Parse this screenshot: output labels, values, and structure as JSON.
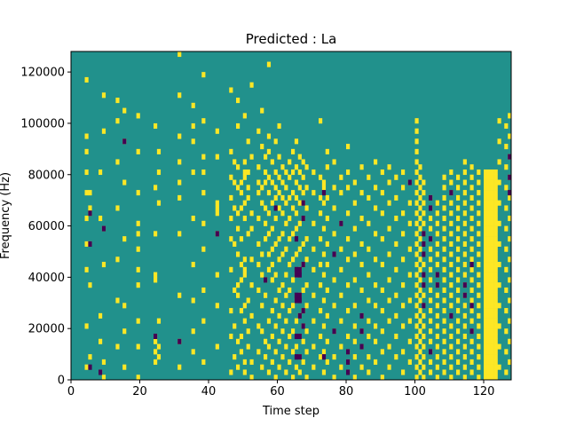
{
  "chart_data": {
    "type": "heatmap",
    "title": "Predicted : La",
    "xlabel": "Time step",
    "ylabel": "Frequency (Hz)",
    "xlim": [
      0,
      128
    ],
    "ylim": [
      0,
      128000
    ],
    "x_ticks": [
      0,
      20,
      40,
      60,
      80,
      100,
      120
    ],
    "y_ticks": [
      0,
      20000,
      40000,
      60000,
      80000,
      100000,
      120000
    ],
    "y_tick_labels": [
      "0",
      "20000",
      "40000",
      "60000",
      "80000",
      "100000",
      "120000"
    ],
    "n_time_steps": 128,
    "n_freq_bins": 64,
    "values_encoding": "value level per cell: 0 = low (dark purple), 1 = mid (teal background), 2 = high (yellow)",
    "colors": {
      "low": "#440154",
      "mid": "#21918c",
      "high": "#fde725",
      "axes": "#000000"
    },
    "cells": [
      {
        "t": 4,
        "f": [
          2,
          10,
          21,
          26,
          31,
          36,
          40,
          44,
          47,
          58
        ]
      },
      {
        "t": 5,
        "f": [
          4,
          18,
          26,
          32,
          33,
          36
        ]
      },
      {
        "t": 8,
        "f": [
          1,
          7,
          12,
          31,
          40
        ]
      },
      {
        "t": 9,
        "f": [
          0,
          3,
          22,
          29,
          48,
          55
        ]
      },
      {
        "t": 13,
        "f": [
          6,
          15,
          23,
          33,
          42,
          50,
          54
        ]
      },
      {
        "t": 15,
        "f": [
          2,
          9,
          14,
          27,
          38,
          46,
          52
        ]
      },
      {
        "t": 19,
        "f": [
          0,
          6,
          11,
          18,
          21,
          25,
          28,
          30,
          36,
          44,
          51
        ]
      },
      {
        "t": 24,
        "f": [
          3,
          5,
          7,
          8,
          19,
          20,
          28,
          37,
          49
        ]
      },
      {
        "t": 25,
        "f": [
          4,
          6,
          11,
          34,
          40,
          44
        ]
      },
      {
        "t": 31,
        "f": [
          2,
          7,
          16,
          28,
          35,
          38,
          42,
          47,
          55,
          63
        ]
      },
      {
        "t": 35,
        "f": [
          5,
          9,
          15,
          22,
          31,
          40,
          46,
          49,
          53
        ]
      },
      {
        "t": 38,
        "f": [
          3,
          11,
          17,
          25,
          30,
          36,
          40,
          43,
          50,
          59
        ]
      },
      {
        "t": 42,
        "f": [
          6,
          14,
          20,
          28,
          32,
          33,
          34,
          43,
          48
        ]
      },
      {
        "t": 46,
        "f": [
          1,
          8,
          13,
          21,
          27,
          31,
          35,
          39,
          44,
          56
        ]
      },
      {
        "t": 47,
        "f": [
          4,
          10,
          17,
          26,
          33,
          38,
          42
        ]
      },
      {
        "t": 48,
        "f": [
          2,
          7,
          16,
          18,
          24,
          29,
          32,
          37,
          41,
          49,
          54
        ]
      },
      {
        "t": 49,
        "f": [
          5,
          8,
          13,
          19,
          22,
          27,
          33,
          36,
          38
        ]
      },
      {
        "t": 50,
        "f": [
          1,
          3,
          11,
          14,
          20,
          21,
          23,
          31,
          34,
          39,
          40,
          42,
          51
        ]
      },
      {
        "t": 51,
        "f": [
          6,
          9,
          15,
          28,
          35,
          37,
          40,
          46
        ]
      },
      {
        "t": 52,
        "f": [
          0,
          3,
          12,
          18,
          23,
          29,
          32,
          43,
          57
        ]
      },
      {
        "t": 54,
        "f": [
          5,
          10,
          17,
          22,
          26,
          31,
          36,
          38,
          41,
          48
        ]
      },
      {
        "t": 55,
        "f": [
          2,
          9,
          14,
          20,
          24,
          34,
          37,
          45,
          52
        ]
      },
      {
        "t": 56,
        "f": [
          4,
          7,
          16,
          19,
          27,
          30,
          33,
          38,
          40,
          43
        ]
      },
      {
        "t": 57,
        "f": [
          1,
          6,
          11,
          21,
          24,
          28,
          32,
          36,
          39,
          44,
          47,
          61
        ]
      },
      {
        "t": 58,
        "f": [
          3,
          8,
          13,
          19,
          22,
          25,
          29,
          34,
          38,
          42
        ]
      },
      {
        "t": 59,
        "f": [
          0,
          5,
          10,
          15,
          20,
          26,
          31,
          35,
          37,
          40,
          46
        ]
      },
      {
        "t": 60,
        "f": [
          2,
          7,
          12,
          17,
          23,
          27,
          33,
          36,
          39,
          43,
          49
        ]
      },
      {
        "t": 61,
        "f": [
          4,
          9,
          14,
          18,
          24,
          28,
          32,
          35,
          38,
          41
        ]
      },
      {
        "t": 62,
        "f": [
          1,
          6,
          11,
          16,
          20,
          25,
          30,
          34,
          37,
          40
        ]
      },
      {
        "t": 63,
        "f": [
          3,
          8,
          13,
          17,
          22,
          27,
          31,
          35,
          39,
          42
        ]
      },
      {
        "t": 64,
        "f": [
          0,
          5,
          9,
          14,
          19,
          23,
          28,
          33,
          36,
          40,
          44
        ]
      },
      {
        "t": 65,
        "f": [
          2,
          6,
          11,
          15,
          20,
          24,
          29,
          32,
          35,
          38,
          41,
          46
        ]
      },
      {
        "t": 66,
        "f": [
          1,
          4,
          8,
          12,
          16,
          21,
          25,
          30,
          34,
          37,
          40,
          43
        ]
      },
      {
        "t": 67,
        "f": [
          3,
          7,
          10,
          13,
          17,
          22,
          26,
          31,
          34,
          36,
          39,
          42
        ]
      },
      {
        "t": 68,
        "f": [
          0,
          5,
          9,
          14,
          18,
          23,
          27,
          33,
          37,
          41
        ]
      },
      {
        "t": 70,
        "f": [
          2,
          6,
          11,
          16,
          21,
          25,
          30,
          36,
          40
        ]
      },
      {
        "t": 72,
        "f": [
          4,
          8,
          13,
          18,
          22,
          27,
          32,
          35,
          39,
          50
        ]
      },
      {
        "t": 73,
        "f": [
          1,
          5,
          10,
          15,
          20,
          24,
          29,
          34,
          37,
          38
        ]
      },
      {
        "t": 74,
        "f": [
          3,
          7,
          12,
          17,
          22,
          26,
          31,
          35,
          41,
          44
        ]
      },
      {
        "t": 76,
        "f": [
          0,
          4,
          9,
          14,
          19,
          24,
          28,
          33,
          37,
          42
        ]
      },
      {
        "t": 78,
        "f": [
          2,
          6,
          11,
          16,
          21,
          25,
          30,
          36,
          39
        ]
      },
      {
        "t": 80,
        "f": [
          1,
          3,
          5,
          8,
          13,
          18,
          23,
          27,
          32,
          37,
          40,
          45
        ]
      },
      {
        "t": 82,
        "f": [
          0,
          4,
          7,
          10,
          14,
          19,
          24,
          29,
          34,
          38
        ]
      },
      {
        "t": 84,
        "f": [
          2,
          6,
          9,
          12,
          17,
          22,
          26,
          31,
          36,
          41
        ]
      },
      {
        "t": 86,
        "f": [
          1,
          4,
          8,
          11,
          15,
          20,
          25,
          30,
          35,
          39
        ]
      },
      {
        "t": 88,
        "f": [
          3,
          7,
          10,
          14,
          18,
          23,
          28,
          33,
          37,
          42
        ]
      },
      {
        "t": 90,
        "f": [
          0,
          5,
          9,
          13,
          17,
          22,
          27,
          32,
          36,
          40
        ]
      },
      {
        "t": 92,
        "f": [
          2,
          6,
          11,
          15,
          19,
          24,
          29,
          34,
          38,
          41
        ]
      },
      {
        "t": 94,
        "f": [
          4,
          8,
          12,
          16,
          21,
          26,
          31,
          35,
          39
        ]
      },
      {
        "t": 96,
        "f": [
          1,
          5,
          10,
          14,
          18,
          23,
          28,
          32,
          37,
          40
        ]
      },
      {
        "t": 98,
        "f": [
          3,
          7,
          11,
          15,
          20,
          25,
          30,
          34,
          38
        ]
      },
      {
        "t": 100,
        "f": [
          0,
          2,
          4,
          6,
          8,
          10,
          12,
          14,
          16,
          18,
          20,
          22,
          24,
          26,
          28,
          30,
          32,
          34,
          36,
          38,
          40,
          42,
          44,
          46,
          48,
          50
        ]
      },
      {
        "t": 101,
        "f": [
          1,
          3,
          5,
          7,
          9,
          11,
          13,
          15,
          17,
          19,
          21,
          23,
          25,
          27,
          29,
          31,
          33,
          35,
          37,
          39,
          41
        ]
      },
      {
        "t": 102,
        "f": [
          0,
          2,
          4,
          6,
          8,
          10,
          12,
          14,
          16,
          18,
          20,
          22,
          24,
          26,
          28,
          30,
          32,
          34,
          36,
          38
        ]
      },
      {
        "t": 104,
        "f": [
          1,
          3,
          5,
          7,
          9,
          11,
          13,
          15,
          17,
          19,
          21,
          23,
          25,
          27,
          29,
          31,
          33,
          35
        ]
      },
      {
        "t": 106,
        "f": [
          0,
          2,
          4,
          6,
          8,
          10,
          12,
          14,
          16,
          18,
          20,
          22,
          24,
          26,
          28,
          30,
          32,
          34
        ]
      },
      {
        "t": 108,
        "f": [
          1,
          3,
          5,
          7,
          9,
          11,
          13,
          15,
          17,
          19,
          21,
          23,
          25,
          27,
          29,
          31,
          33,
          35,
          37,
          39
        ]
      },
      {
        "t": 110,
        "f": [
          0,
          2,
          4,
          6,
          8,
          10,
          12,
          14,
          16,
          18,
          20,
          22,
          24,
          26,
          28,
          30,
          32,
          34,
          36,
          38,
          40
        ]
      },
      {
        "t": 112,
        "f": [
          1,
          3,
          5,
          7,
          9,
          11,
          13,
          15,
          17,
          19,
          21,
          23,
          25,
          27,
          29,
          31,
          33,
          35,
          37,
          39
        ]
      },
      {
        "t": 114,
        "f": [
          0,
          2,
          4,
          6,
          8,
          10,
          12,
          14,
          16,
          18,
          20,
          22,
          24,
          26,
          28,
          30,
          32,
          34,
          36,
          38,
          40,
          42
        ]
      },
      {
        "t": 116,
        "f": [
          1,
          3,
          5,
          7,
          9,
          11,
          13,
          15,
          17,
          19,
          21,
          23,
          25,
          27,
          29,
          31,
          33,
          35,
          37,
          39,
          41
        ]
      },
      {
        "t": 118,
        "f": [
          0,
          2,
          4,
          6,
          8,
          10,
          12,
          14,
          16,
          18,
          20,
          22,
          24,
          26,
          28,
          30,
          32,
          34,
          36,
          38,
          40
        ]
      },
      {
        "t": 120,
        "f": [
          0,
          1,
          2,
          3,
          4,
          5,
          6,
          7,
          8,
          9,
          10,
          11,
          12,
          13,
          14,
          15,
          16,
          17,
          18,
          19,
          20,
          21,
          22,
          23,
          24,
          25,
          26,
          27,
          28,
          29,
          30,
          31,
          32,
          33,
          34,
          35,
          36,
          37,
          38,
          39,
          40
        ]
      },
      {
        "t": 121,
        "f": [
          0,
          1,
          2,
          3,
          4,
          5,
          6,
          7,
          8,
          9,
          10,
          11,
          12,
          13,
          14,
          15,
          16,
          17,
          18,
          19,
          20,
          21,
          22,
          23,
          24,
          25,
          26,
          27,
          28,
          29,
          30,
          31,
          32,
          33,
          34,
          35,
          36,
          37,
          38,
          39,
          40
        ]
      },
      {
        "t": 122,
        "f": [
          0,
          1,
          2,
          3,
          4,
          5,
          6,
          7,
          8,
          9,
          10,
          11,
          12,
          13,
          14,
          15,
          16,
          17,
          18,
          19,
          20,
          21,
          22,
          23,
          24,
          25,
          26,
          27,
          28,
          29,
          30,
          31,
          32,
          33,
          34,
          35,
          36,
          37,
          38,
          39,
          40
        ]
      },
      {
        "t": 123,
        "f": [
          0,
          1,
          2,
          3,
          4,
          5,
          6,
          7,
          8,
          9,
          10,
          11,
          12,
          13,
          14,
          15,
          16,
          17,
          18,
          19,
          20,
          21,
          22,
          23,
          24,
          25,
          26,
          27,
          28,
          29,
          30,
          31,
          32,
          33,
          34,
          35,
          36,
          37,
          38,
          39,
          40
        ]
      },
      {
        "t": 124,
        "f": [
          2,
          6,
          10,
          14,
          18,
          22,
          26,
          30,
          34,
          38,
          42,
          46,
          50
        ]
      },
      {
        "t": 126,
        "f": [
          1,
          5,
          9,
          13,
          17,
          21,
          25,
          29,
          33,
          37,
          41,
          45,
          49
        ]
      },
      {
        "t": 127,
        "f": [
          3,
          7,
          11,
          15,
          19,
          23,
          27,
          31,
          35,
          39,
          43,
          47,
          51
        ]
      }
    ],
    "low_cells": [
      {
        "t": 5,
        "f": [
          2,
          26,
          32
        ]
      },
      {
        "t": 8,
        "f": [
          1
        ]
      },
      {
        "t": 9,
        "f": [
          29
        ]
      },
      {
        "t": 15,
        "f": [
          46
        ]
      },
      {
        "t": 24,
        "f": [
          8
        ]
      },
      {
        "t": 31,
        "f": [
          7
        ]
      },
      {
        "t": 42,
        "f": [
          28
        ]
      },
      {
        "t": 56,
        "f": [
          19
        ]
      },
      {
        "t": 59,
        "f": [
          33
        ]
      },
      {
        "t": 65,
        "f": [
          4,
          8,
          15,
          16,
          20,
          21,
          27
        ]
      },
      {
        "t": 66,
        "f": [
          4,
          8,
          12,
          15,
          16,
          20,
          21
        ]
      },
      {
        "t": 67,
        "f": [
          10,
          13,
          22,
          31,
          34
        ]
      },
      {
        "t": 73,
        "f": [
          4,
          36
        ]
      },
      {
        "t": 76,
        "f": [
          9,
          24
        ]
      },
      {
        "t": 78,
        "f": [
          30
        ]
      },
      {
        "t": 80,
        "f": [
          1,
          3,
          5
        ]
      },
      {
        "t": 84,
        "f": [
          6,
          9,
          12
        ]
      },
      {
        "t": 98,
        "f": [
          38
        ]
      },
      {
        "t": 102,
        "f": [
          14,
          18,
          20,
          24,
          26,
          28
        ]
      },
      {
        "t": 104,
        "f": [
          5,
          27,
          33,
          35
        ]
      },
      {
        "t": 106,
        "f": [
          18,
          20
        ]
      },
      {
        "t": 110,
        "f": [
          12,
          36
        ]
      },
      {
        "t": 114,
        "f": [
          16,
          18
        ]
      },
      {
        "t": 116,
        "f": [
          9,
          14,
          22
        ]
      },
      {
        "t": 127,
        "f": [
          36,
          39,
          43
        ]
      }
    ]
  }
}
